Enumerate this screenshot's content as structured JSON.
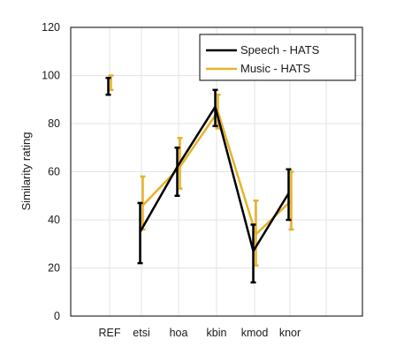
{
  "chart_data": {
    "type": "line",
    "title": "",
    "xlabel": "",
    "ylabel": "Similarity rating",
    "categories": [
      "REF",
      "etsi",
      "hoa",
      "kbin",
      "kmod",
      "knor"
    ],
    "ylim": [
      0,
      120
    ],
    "yticks": [
      0,
      20,
      40,
      60,
      80,
      100,
      120
    ],
    "grid": true,
    "legend_position": "top-right",
    "series": [
      {
        "name": "Speech - HATS",
        "color": "#000000",
        "values": [
          96,
          35,
          62,
          87,
          27,
          51
        ],
        "err_low": [
          92,
          22,
          50,
          79,
          14,
          40
        ],
        "err_high": [
          99,
          47,
          70,
          94,
          38,
          61
        ]
      },
      {
        "name": "Music - HATS",
        "color": "#E6B22A",
        "values": [
          96,
          46,
          62,
          85,
          34,
          48
        ],
        "err_low": [
          94,
          36,
          53,
          78,
          21,
          36
        ],
        "err_high": [
          100,
          58,
          74,
          92,
          48,
          60
        ]
      }
    ]
  }
}
